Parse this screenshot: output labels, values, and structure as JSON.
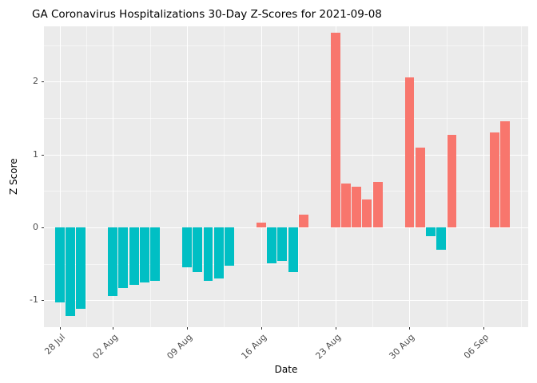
{
  "chart_data": {
    "type": "bar",
    "title": "GA Coronavirus Hospitalizations 30-Day Z-Scores for 2021-09-08",
    "xlabel": "Date",
    "ylabel": "Z Score",
    "legend": "none",
    "grid": true,
    "x_tick_labels": [
      "28 Jul",
      "02 Aug",
      "09 Aug",
      "16 Aug",
      "23 Aug",
      "30 Aug",
      "06 Sep"
    ],
    "x_tick_days": [
      0,
      5,
      12,
      19,
      26,
      33,
      40
    ],
    "x_minor_days": [
      2.5,
      8.5,
      15.5,
      22.5,
      29.5,
      36.5,
      43.5
    ],
    "y_major_ticks": [
      -1,
      0,
      1,
      2
    ],
    "y_minor_ticks": [
      -0.5,
      0.5,
      1.5,
      2.5
    ],
    "ylim": [
      -1.37,
      2.76
    ],
    "xlim_days": [
      -1.5,
      44.2
    ],
    "colors": {
      "positive": "#F8766D",
      "negative": "#00BFC4",
      "panel_bg": "#EBEBEB",
      "grid": "#FFFFFF",
      "axis_text": "#4D4D4D",
      "tick_mark": "#333333"
    },
    "bars": [
      {
        "date": "2021-07-28",
        "day": 0,
        "value": -1.03
      },
      {
        "date": "2021-07-29",
        "day": 1,
        "value": -1.22
      },
      {
        "date": "2021-07-30",
        "day": 2,
        "value": -1.12
      },
      {
        "date": "2021-08-02",
        "day": 5,
        "value": -0.94
      },
      {
        "date": "2021-08-03",
        "day": 6,
        "value": -0.83
      },
      {
        "date": "2021-08-04",
        "day": 7,
        "value": -0.79
      },
      {
        "date": "2021-08-05",
        "day": 8,
        "value": -0.76
      },
      {
        "date": "2021-08-06",
        "day": 9,
        "value": -0.74
      },
      {
        "date": "2021-08-09",
        "day": 12,
        "value": -0.55
      },
      {
        "date": "2021-08-10",
        "day": 13,
        "value": -0.61
      },
      {
        "date": "2021-08-11",
        "day": 14,
        "value": -0.74
      },
      {
        "date": "2021-08-12",
        "day": 15,
        "value": -0.7
      },
      {
        "date": "2021-08-13",
        "day": 16,
        "value": -0.53
      },
      {
        "date": "2021-08-16",
        "day": 19,
        "value": 0.06
      },
      {
        "date": "2021-08-17",
        "day": 20,
        "value": -0.49
      },
      {
        "date": "2021-08-18",
        "day": 21,
        "value": -0.46
      },
      {
        "date": "2021-08-19",
        "day": 22,
        "value": -0.61
      },
      {
        "date": "2021-08-20",
        "day": 23,
        "value": 0.17
      },
      {
        "date": "2021-08-23",
        "day": 26,
        "value": 2.67
      },
      {
        "date": "2021-08-24",
        "day": 27,
        "value": 0.6
      },
      {
        "date": "2021-08-25",
        "day": 28,
        "value": 0.56
      },
      {
        "date": "2021-08-26",
        "day": 29,
        "value": 0.38
      },
      {
        "date": "2021-08-27",
        "day": 30,
        "value": 0.62
      },
      {
        "date": "2021-08-30",
        "day": 33,
        "value": 2.06
      },
      {
        "date": "2021-08-31",
        "day": 34,
        "value": 1.1
      },
      {
        "date": "2021-09-01",
        "day": 35,
        "value": -0.12
      },
      {
        "date": "2021-09-02",
        "day": 36,
        "value": -0.31
      },
      {
        "date": "2021-09-03",
        "day": 37,
        "value": 1.27
      },
      {
        "date": "2021-09-07",
        "day": 41,
        "value": 1.3
      },
      {
        "date": "2021-09-08",
        "day": 42,
        "value": 1.46
      }
    ]
  }
}
